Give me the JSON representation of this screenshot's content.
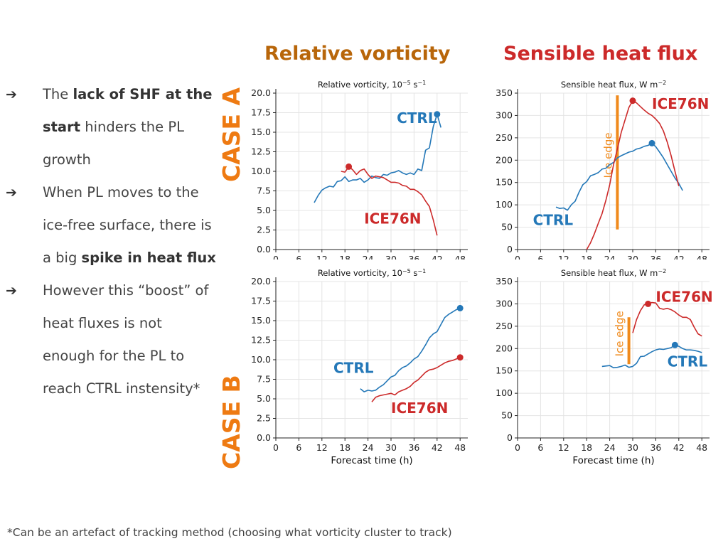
{
  "headers": {
    "vorticity": "Relative vorticity",
    "shf": "Sensible heat flux"
  },
  "cases": {
    "a": "CASE A",
    "b": "CASE B"
  },
  "bullets": [
    {
      "parts": [
        {
          "t": "The ",
          "b": false
        },
        {
          "t": "lack of SHF at the start",
          "b": true
        },
        {
          "t": " hinders the PL growth",
          "b": false
        }
      ]
    },
    {
      "parts": [
        {
          "t": "When PL moves to the ice-free surface, there is a big ",
          "b": false
        },
        {
          "t": "spike in heat flux",
          "b": true
        }
      ]
    },
    {
      "parts": [
        {
          "t": "However this “boost” of heat fluxes is not enough for the PL to reach CTRL instensity*",
          "b": false
        }
      ]
    }
  ],
  "footnote": "*Can be an artefact of tracking method (choosing what vorticity cluster to track)",
  "colors": {
    "ctrl": "#2478b8",
    "ice": "#cc2a2a",
    "ice_edge": "#f08a1c",
    "vort_header": "#b8660a",
    "case_label": "#ee7a12"
  },
  "chart_data": [
    {
      "id": "a-vort",
      "type": "line",
      "title_tex": [
        "Relative vorticity, 10",
        "−5",
        " s",
        "−1"
      ],
      "xlabel": "",
      "xlim": [
        0,
        50
      ],
      "ylim": [
        0,
        20
      ],
      "xticks": [
        "0",
        "6",
        "12",
        "18",
        "24",
        "30",
        "36",
        "42",
        "48"
      ],
      "yticks": [
        "0.0",
        "2.5",
        "5.0",
        "7.5",
        "10.0",
        "12.5",
        "15.0",
        "17.5",
        "20.0"
      ],
      "series": [
        {
          "name": "CTRL",
          "color": "ctrl",
          "label_at": [
            31.5,
            16.2
          ],
          "x": [
            10,
            11,
            12,
            13,
            14,
            15,
            16,
            17,
            18,
            19,
            20,
            21,
            22,
            23,
            24,
            25,
            26,
            27,
            28,
            29,
            30,
            31,
            32,
            33,
            34,
            35,
            36,
            37,
            38,
            39,
            40,
            41,
            42,
            43
          ],
          "y": [
            6.0,
            6.9,
            7.6,
            7.9,
            8.1,
            8.0,
            8.7,
            8.8,
            9.3,
            8.7,
            8.9,
            8.9,
            9.1,
            8.6,
            8.9,
            9.4,
            9.2,
            9.1,
            9.6,
            9.5,
            9.8,
            9.9,
            10.1,
            9.8,
            9.6,
            9.8,
            9.6,
            10.3,
            10.1,
            12.7,
            13.0,
            15.7,
            17.3,
            15.6
          ],
          "marker": [
            42,
            17.3
          ]
        },
        {
          "name": "ICE76N",
          "color": "ice",
          "label_at": [
            23,
            3.3
          ],
          "x": [
            17,
            18,
            19,
            20,
            21,
            22,
            23,
            24,
            25,
            26,
            27,
            28,
            29,
            30,
            31,
            32,
            33,
            34,
            35,
            36,
            37,
            38,
            39,
            40,
            41,
            42
          ],
          "y": [
            10.0,
            9.9,
            10.6,
            10.2,
            9.6,
            10.1,
            10.3,
            9.6,
            9.1,
            9.4,
            9.3,
            9.2,
            8.9,
            8.6,
            8.6,
            8.5,
            8.2,
            8.1,
            7.7,
            7.7,
            7.4,
            7.0,
            6.2,
            5.5,
            3.8,
            1.8
          ],
          "marker": [
            19,
            10.6
          ]
        }
      ]
    },
    {
      "id": "a-shf",
      "type": "line",
      "title_tex": [
        "Sensible heat flux, W m",
        "−2"
      ],
      "xlabel": "",
      "xlim": [
        0,
        50
      ],
      "ylim": [
        0,
        350
      ],
      "xticks": [
        "0",
        "6",
        "12",
        "18",
        "24",
        "30",
        "36",
        "42",
        "48"
      ],
      "yticks": [
        "0",
        "50",
        "100",
        "150",
        "200",
        "250",
        "300",
        "350"
      ],
      "ice_edge": {
        "x": 26,
        "y0": 45,
        "y1": 345,
        "label": "Ice edge"
      },
      "series": [
        {
          "name": "CTRL",
          "color": "ctrl",
          "label_at": [
            4,
            55
          ],
          "x": [
            10,
            11,
            12,
            13,
            14,
            15,
            16,
            17,
            18,
            19,
            20,
            21,
            22,
            23,
            24,
            25,
            26,
            27,
            28,
            29,
            30,
            31,
            32,
            33,
            34,
            35,
            36,
            37,
            38,
            39,
            40,
            41,
            42,
            43
          ],
          "y": [
            95,
            92,
            93,
            88,
            100,
            108,
            128,
            145,
            152,
            165,
            168,
            172,
            180,
            182,
            190,
            195,
            205,
            210,
            214,
            218,
            220,
            225,
            227,
            231,
            233,
            238,
            230,
            218,
            205,
            190,
            175,
            160,
            148,
            132
          ],
          "marker": [
            35,
            238
          ]
        },
        {
          "name": "ICE76N",
          "color": "ice",
          "label_at": [
            35,
            315
          ],
          "x": [
            18,
            19,
            20,
            21,
            22,
            23,
            24,
            25,
            26,
            27,
            28,
            29,
            30,
            31,
            32,
            33,
            34,
            35,
            36,
            37,
            38,
            39,
            40,
            41,
            42
          ],
          "y": [
            0,
            15,
            35,
            58,
            80,
            110,
            145,
            190,
            225,
            262,
            290,
            318,
            333,
            328,
            320,
            312,
            305,
            300,
            292,
            282,
            265,
            240,
            210,
            175,
            142
          ],
          "marker": [
            30,
            333
          ]
        }
      ]
    },
    {
      "id": "b-vort",
      "type": "line",
      "title_tex": [
        "Relative vorticity, 10",
        "−5",
        " s",
        "−1"
      ],
      "xlabel": "Forecast time (h)",
      "xlim": [
        0,
        50
      ],
      "ylim": [
        0,
        20
      ],
      "xticks": [
        "0",
        "6",
        "12",
        "18",
        "24",
        "30",
        "36",
        "42",
        "48"
      ],
      "yticks": [
        "0.0",
        "2.5",
        "5.0",
        "7.5",
        "10.0",
        "12.5",
        "15.0",
        "17.5",
        "20.0"
      ],
      "series": [
        {
          "name": "CTRL",
          "color": "ctrl",
          "label_at": [
            15,
            8.3
          ],
          "x": [
            22,
            23,
            24,
            25,
            26,
            27,
            28,
            29,
            30,
            31,
            32,
            33,
            34,
            35,
            36,
            37,
            38,
            39,
            40,
            41,
            42,
            43,
            44,
            45,
            46,
            47,
            48
          ],
          "y": [
            6.3,
            5.9,
            6.1,
            6.0,
            6.1,
            6.5,
            6.8,
            7.3,
            7.8,
            8.0,
            8.6,
            9.0,
            9.2,
            9.6,
            10.1,
            10.4,
            11.1,
            11.9,
            12.8,
            13.3,
            13.6,
            14.5,
            15.4,
            15.8,
            16.1,
            16.4,
            16.6
          ],
          "marker": [
            48,
            16.6
          ]
        },
        {
          "name": "ICE76N",
          "color": "ice",
          "label_at": [
            30,
            3.2
          ],
          "x": [
            25,
            26,
            27,
            28,
            29,
            30,
            31,
            32,
            33,
            34,
            35,
            36,
            37,
            38,
            39,
            40,
            41,
            42,
            43,
            44,
            45,
            46,
            47,
            48
          ],
          "y": [
            4.6,
            5.2,
            5.4,
            5.5,
            5.6,
            5.7,
            5.5,
            5.9,
            6.1,
            6.3,
            6.6,
            7.1,
            7.4,
            7.9,
            8.4,
            8.7,
            8.8,
            9.0,
            9.3,
            9.6,
            9.8,
            9.9,
            10.1,
            10.3
          ],
          "marker": [
            48,
            10.3
          ]
        }
      ]
    },
    {
      "id": "b-shf",
      "type": "line",
      "title_tex": [
        "Sensible heat flux, W m",
        "−2"
      ],
      "xlabel": "Forecast time (h)",
      "xlim": [
        0,
        50
      ],
      "ylim": [
        0,
        350
      ],
      "xticks": [
        "0",
        "6",
        "12",
        "18",
        "24",
        "30",
        "36",
        "42",
        "48"
      ],
      "yticks": [
        "0",
        "50",
        "100",
        "150",
        "200",
        "250",
        "300",
        "350"
      ],
      "ice_edge": {
        "x": 29,
        "y0": 165,
        "y1": 270,
        "label": "Ice edge"
      },
      "series": [
        {
          "name": "CTRL",
          "color": "ctrl",
          "label_at": [
            39,
            160
          ],
          "x": [
            22,
            23,
            24,
            25,
            26,
            27,
            28,
            29,
            30,
            31,
            32,
            33,
            34,
            35,
            36,
            37,
            38,
            39,
            40,
            41,
            42,
            43,
            44,
            45,
            46,
            47,
            48
          ],
          "y": [
            160,
            161,
            162,
            157,
            158,
            160,
            163,
            158,
            160,
            167,
            182,
            183,
            188,
            193,
            197,
            199,
            198,
            200,
            202,
            208,
            205,
            200,
            197,
            197,
            196,
            194,
            191
          ],
          "marker": [
            41,
            208
          ]
        },
        {
          "name": "ICE76N",
          "color": "ice",
          "label_at": [
            36,
            305
          ],
          "x": [
            30,
            31,
            32,
            33,
            34,
            35,
            36,
            37,
            38,
            39,
            40,
            41,
            42,
            43,
            44,
            45,
            46,
            47,
            48
          ],
          "y": [
            235,
            265,
            285,
            298,
            300,
            303,
            302,
            290,
            288,
            290,
            287,
            282,
            275,
            270,
            270,
            265,
            248,
            233,
            228
          ],
          "marker": [
            34,
            300
          ]
        }
      ]
    }
  ]
}
